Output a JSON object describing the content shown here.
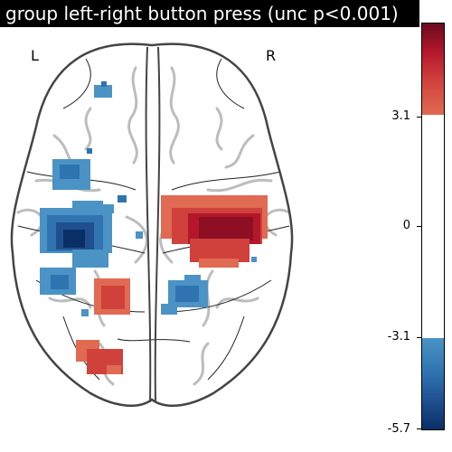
{
  "title": "group left-right button press (unc p<0.001)",
  "orientation": {
    "left": "L",
    "right": "R"
  },
  "colorbar": {
    "ticks": [
      "3.1",
      "0",
      "-3.1",
      "-5.7"
    ],
    "colors": {
      "pos_dark": "#6b0a1f",
      "pos_light": "#e06a52",
      "neg_light": "#4b93c4",
      "neg_dark": "#0a2f67"
    }
  },
  "icons": [
    "brain-outline-axial"
  ]
}
